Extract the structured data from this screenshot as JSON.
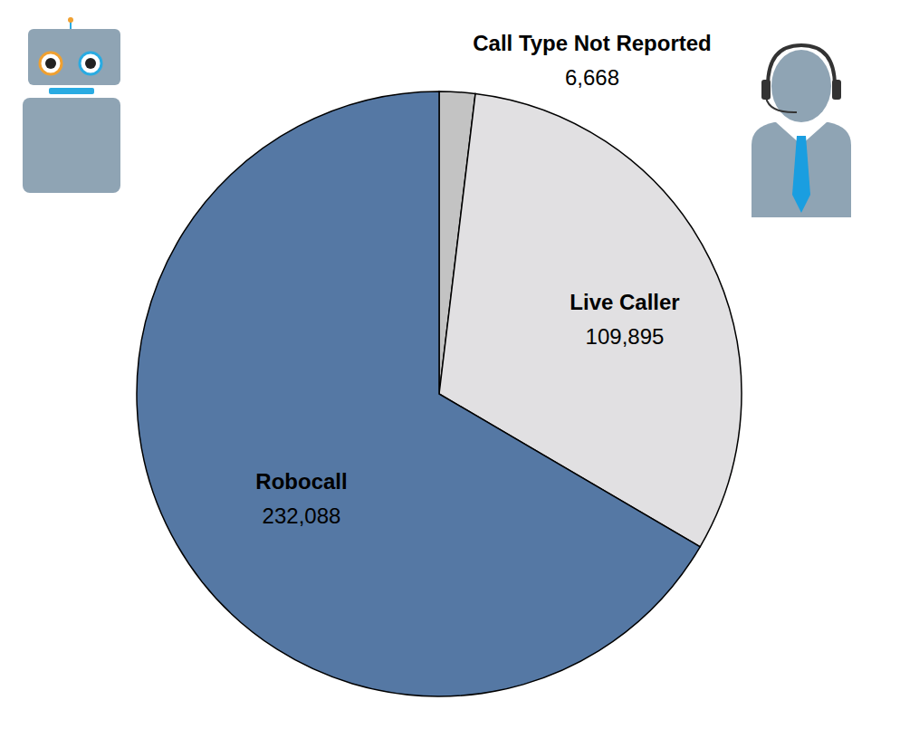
{
  "chart_data": {
    "type": "pie",
    "categories": [
      "Call Type Not Reported",
      "Live Caller",
      "Robocall"
    ],
    "values": [
      6668,
      109895,
      232088
    ],
    "value_labels": [
      "6,668",
      "109,895",
      "232,088"
    ],
    "colors": [
      "#c3c3c3",
      "#e1e0e2",
      "#5578a4"
    ],
    "data_labels": true
  }
}
